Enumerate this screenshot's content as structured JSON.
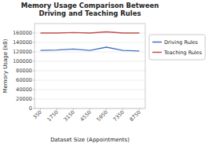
{
  "chart_data": {
    "type": "line",
    "title": "Memory Usage Comparison Between\nDriving and Teaching Rules",
    "x_label": "Dataset Size (Appointments)",
    "y_label": "Memory Usage (kB)",
    "x": [
      350,
      1750,
      3150,
      4550,
      5950,
      7350,
      8750
    ],
    "series": [
      {
        "name": "Driving Rules",
        "color": "#4472c4",
        "values": [
          123000,
          124000,
          126000,
          123000,
          130000,
          123000,
          122000
        ]
      },
      {
        "name": "Teaching Rules",
        "color": "#c0504d",
        "values": [
          160000,
          160000,
          161000,
          160000,
          162500,
          160000,
          160000
        ]
      }
    ],
    "xlim": [
      -150,
      9250
    ],
    "xticks": [
      350,
      1750,
      3150,
      4550,
      5950,
      7350,
      8750
    ],
    "ylim": [
      0,
      180000
    ],
    "yticks": [
      0,
      20000,
      40000,
      60000,
      80000,
      100000,
      120000,
      140000,
      160000
    ],
    "grid": true,
    "legend": "right"
  }
}
